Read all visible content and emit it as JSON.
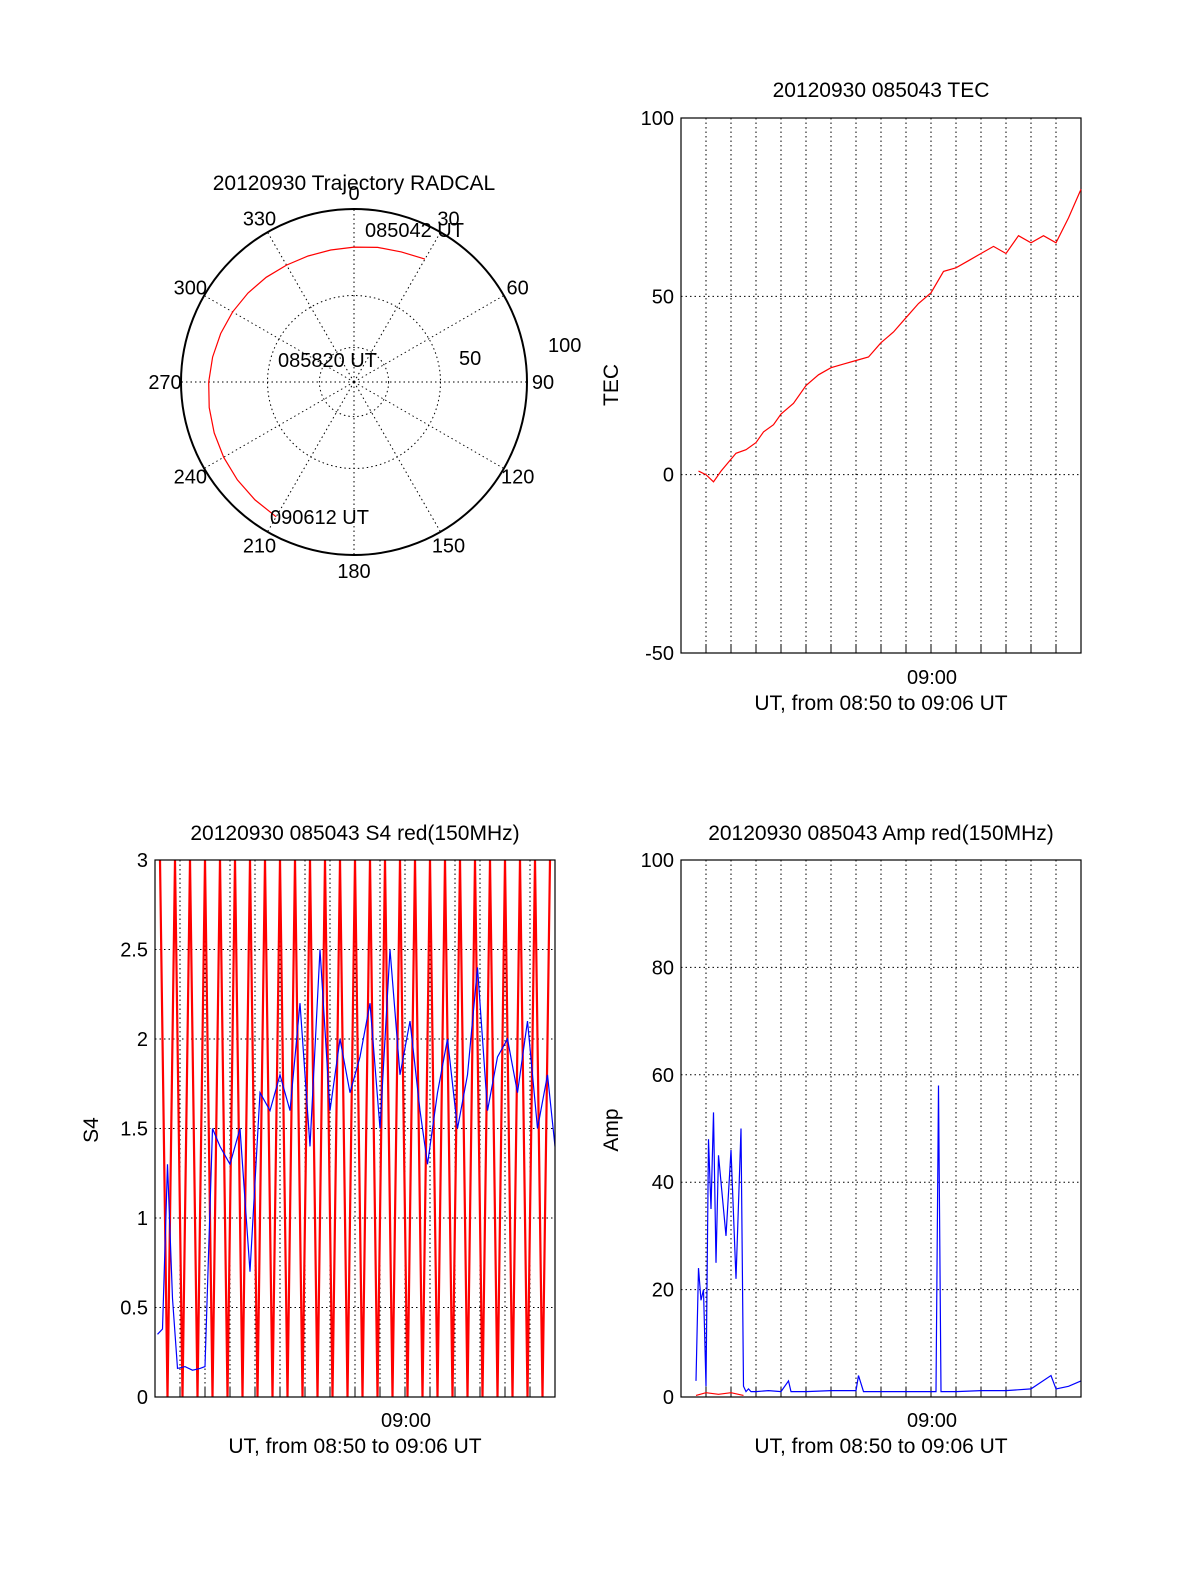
{
  "chart_data": [
    {
      "type": "polar",
      "title": "20120930 Trajectory RADCAL",
      "angle_ticks": [
        "0",
        "30",
        "60",
        "90",
        "120",
        "150",
        "180",
        "210",
        "240",
        "270",
        "300",
        "330"
      ],
      "radial_ticks": [
        "50",
        "100"
      ],
      "rlim": [
        0,
        100
      ],
      "grid": true,
      "series": [
        {
          "color": "#ff0000",
          "azimuth": [
            30,
            20,
            10,
            0,
            -10,
            -20,
            -30,
            -40,
            -50,
            -60,
            -70,
            -80,
            -90,
            -100,
            -110,
            -120,
            -130,
            -140,
            -150
          ],
          "radius": [
            82,
            80,
            79,
            78,
            77.5,
            77.5,
            78,
            79,
            80,
            81,
            82,
            83,
            84,
            85,
            86,
            87,
            88,
            89,
            90
          ]
        }
      ],
      "annotations": [
        {
          "text": "085042 UT",
          "azimuth": 30,
          "radius": 86
        },
        {
          "text": "085820 UT",
          "azimuth": -20,
          "radius": 12
        },
        {
          "text": "090612 UT",
          "azimuth": -145,
          "radius": 92
        }
      ]
    },
    {
      "type": "line",
      "title": "20120930 085043 TEC",
      "ylabel": "TEC",
      "xlabel": "UT, from 08:50 to 09:06 UT",
      "x_tick_label": "09:00",
      "xlim": [
        0,
        16
      ],
      "ylim": [
        -50,
        100
      ],
      "y_ticks": [
        "-50",
        "0",
        "50",
        "100"
      ],
      "grid": true,
      "series": [
        {
          "color": "#ff0000",
          "x": [
            0.7,
            1.0,
            1.3,
            1.6,
            2.2,
            2.6,
            3.0,
            3.3,
            3.7,
            4.0,
            4.5,
            5.0,
            5.5,
            6.0,
            6.5,
            7.0,
            7.5,
            8.0,
            8.5,
            9.0,
            9.5,
            10.0,
            10.5,
            11.0,
            11.5,
            12.0,
            12.5,
            13.0,
            13.5,
            14.0,
            14.5,
            15.0,
            15.5,
            16.0
          ],
          "y": [
            1,
            0,
            -2,
            1,
            6,
            7,
            9,
            12,
            14,
            17,
            20,
            25,
            28,
            30,
            31,
            32,
            33,
            37,
            40,
            44,
            48,
            51,
            57,
            58,
            60,
            62,
            64,
            62,
            67,
            65,
            67,
            65,
            72,
            80
          ]
        }
      ]
    },
    {
      "type": "line",
      "title": "20120930 085043 S4 red(150MHz)",
      "ylabel": "S4",
      "xlabel": "UT, from 08:50 to 09:06 UT",
      "x_tick_label": "09:00",
      "xlim": [
        0,
        16
      ],
      "ylim": [
        0,
        3
      ],
      "y_ticks": [
        "0",
        "0.5",
        "1",
        "1.5",
        "2",
        "2.5",
        "3"
      ],
      "grid": true,
      "series": [
        {
          "color": "#ff0000",
          "note_hidden": true,
          "x": [
            0.2,
            0.5,
            0.8,
            1.1,
            1.4,
            1.7,
            2.0,
            2.3,
            2.6,
            2.9,
            3.2,
            3.5,
            3.8,
            4.1,
            4.4,
            4.7,
            5.0,
            5.3,
            5.6,
            5.9,
            6.2,
            6.5,
            6.8,
            7.1,
            7.4,
            7.7,
            8.0,
            8.3,
            8.6,
            8.9,
            9.2,
            9.5,
            9.8,
            10.1,
            10.4,
            10.7,
            11.0,
            11.3,
            11.6,
            11.9,
            12.2,
            12.5,
            12.8,
            13.1,
            13.4,
            13.7,
            14.0,
            14.3,
            14.6,
            14.9,
            15.2,
            15.5,
            15.8
          ],
          "y": [
            3,
            0,
            3,
            0,
            3,
            0,
            3,
            0,
            3,
            0,
            3,
            0,
            3,
            0,
            3,
            0,
            3,
            0,
            3,
            0,
            3,
            0,
            3,
            0,
            3,
            0,
            3,
            0,
            3,
            0,
            3,
            0,
            3,
            0,
            3,
            0,
            3,
            0,
            3,
            0,
            3,
            0,
            3,
            0,
            3,
            0,
            3,
            0,
            3,
            0,
            3,
            0,
            3
          ]
        },
        {
          "color": "#0000ff",
          "x": [
            0.1,
            0.3,
            0.5,
            0.7,
            0.9,
            1.2,
            1.5,
            1.8,
            2.0,
            2.3,
            2.6,
            3.0,
            3.4,
            3.8,
            4.2,
            4.6,
            5.0,
            5.4,
            5.8,
            6.2,
            6.6,
            7.0,
            7.4,
            7.8,
            8.2,
            8.6,
            9.0,
            9.4,
            9.8,
            10.2,
            10.6,
            10.9,
            11.3,
            11.7,
            12.1,
            12.5,
            12.9,
            13.3,
            13.7,
            14.1,
            14.5,
            14.9,
            15.3,
            15.7,
            16.0
          ],
          "y": [
            0.35,
            0.38,
            1.3,
            0.55,
            0.16,
            0.17,
            0.15,
            0.16,
            0.17,
            1.5,
            1.4,
            1.3,
            1.5,
            0.7,
            1.7,
            1.6,
            1.8,
            1.6,
            2.2,
            1.4,
            2.5,
            1.6,
            2.0,
            1.7,
            1.9,
            2.2,
            1.5,
            2.5,
            1.8,
            2.1,
            1.6,
            1.3,
            1.7,
            2.0,
            1.5,
            1.8,
            2.4,
            1.6,
            1.9,
            2.0,
            1.7,
            2.1,
            1.5,
            1.8,
            1.4
          ]
        }
      ]
    },
    {
      "type": "line",
      "title": "20120930 085043 Amp red(150MHz)",
      "ylabel": "Amp",
      "xlabel": "UT, from 08:50 to 09:06 UT",
      "x_tick_label": "09:00",
      "xlim": [
        0,
        16
      ],
      "ylim": [
        0,
        100
      ],
      "y_ticks": [
        "0",
        "20",
        "40",
        "60",
        "80",
        "100"
      ],
      "grid": true,
      "series": [
        {
          "color": "#ff0000",
          "x": [
            0.6,
            1.0,
            1.5,
            2.0,
            2.5
          ],
          "y": [
            0.3,
            0.8,
            0.5,
            0.8,
            0.3
          ]
        },
        {
          "color": "#0000ff",
          "x": [
            0.6,
            0.7,
            0.8,
            0.9,
            1.0,
            1.1,
            1.2,
            1.3,
            1.4,
            1.5,
            1.8,
            2.0,
            2.2,
            2.4,
            2.5,
            2.6,
            2.7,
            2.8,
            3.0,
            3.5,
            4.0,
            4.3,
            4.4,
            4.6,
            5.0,
            6.0,
            7.0,
            7.1,
            7.3,
            8.0,
            9.0,
            10.2,
            10.3,
            10.4,
            11.0,
            12.0,
            13.0,
            14.0,
            14.8,
            15.0,
            15.5,
            16.0
          ],
          "y": [
            3,
            24,
            18,
            20,
            2,
            48,
            35,
            53,
            25,
            45,
            30,
            46,
            22,
            50,
            2,
            1,
            1.5,
            1,
            1,
            1.2,
            1,
            3,
            1,
            1,
            1,
            1.2,
            1.2,
            4,
            1,
            1,
            1,
            1,
            58,
            1,
            1,
            1.2,
            1.2,
            1.5,
            4,
            1.5,
            2,
            3
          ]
        }
      ]
    }
  ]
}
